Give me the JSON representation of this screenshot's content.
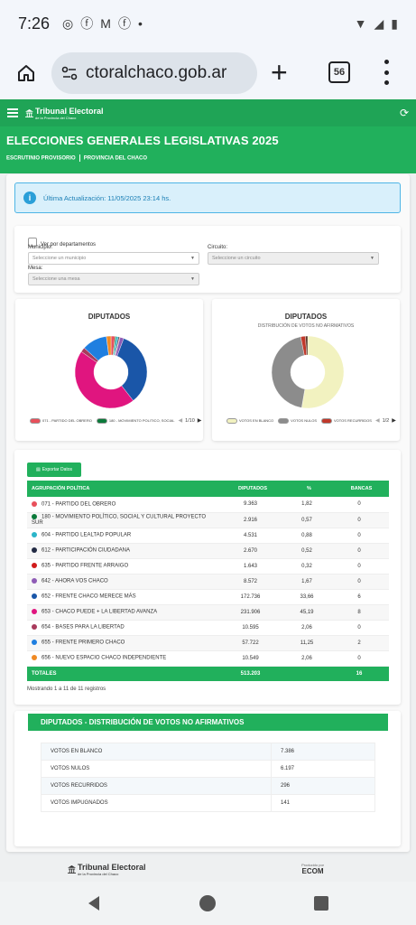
{
  "status": {
    "time": "7:26"
  },
  "browser": {
    "url": "ctoralchaco.gob.ar",
    "tab_count": "56"
  },
  "site": {
    "brand": "Tribunal Electoral",
    "brand_sub": "de la Provincia del Chaco",
    "title": "ELECCIONES GENERALES LEGISLATIVAS 2025",
    "crumb1": "ESCRUTINIO PROVISORIO",
    "crumb2": "PROVINCIA DEL CHACO"
  },
  "alert": {
    "text": "Última Actualización: 11/05/2025 23:14 hs."
  },
  "filters": {
    "by_dept": "Ver por departamentos",
    "municipio_label": "Municipio:",
    "municipio_ph": "Seleccione un municipio",
    "circuito_label": "Circuito:",
    "circuito_ph": "Seleccione un circuito",
    "mesa_label": "Mesa:",
    "mesa_ph": "Seleccione una mesa"
  },
  "chart1": {
    "title": "DIPUTADOS",
    "legend1": "071 - PARTIDO DEL OBRERO",
    "legend2": "180 - MOVIMIENTO POLITICO, SOCIAL",
    "pager": "1/10"
  },
  "chart2": {
    "title": "DIPUTADOS",
    "subtitle": "DISTRIBUCIÓN DE VOTOS NO AFIRMATIVOS",
    "legend1": "VOTOS EN BLANCO",
    "legend2": "VOTOS NULOS",
    "legend3": "VOTOS RECURRIDOS",
    "pager": "1/2"
  },
  "chart_data": [
    {
      "type": "pie",
      "title": "DIPUTADOS",
      "categories": [
        "071 - PARTIDO DEL OBRERO",
        "180 - MOVIMIENTO POLÍTICO, SOCIAL Y CULTURAL PROYECTO SUR",
        "604 - PARTIDO LEALTAD POPULAR",
        "612 - PARTICIPACIÓN CIUDADANA",
        "635 - PARTIDO FRENTE ARRAIGO",
        "642 - AHORA VOS CHACO",
        "652 - FRENTE CHACO MERECE MÁS",
        "653 - CHACO PUEDE + LA LIBERTAD AVANZA",
        "654 - BASES PARA LA LIBERTAD",
        "655 - FRENTE PRIMERO CHACO",
        "656 - NUEVO ESPACIO CHACO INDEPENDIENTE"
      ],
      "values": [
        9363,
        2916,
        4531,
        2670,
        1643,
        8572,
        172736,
        231906,
        10595,
        57722,
        10549
      ],
      "colors": [
        "#e8505b",
        "#0b7a3a",
        "#2bb5c9",
        "#222a44",
        "#d01c1c",
        "#8e5bb5",
        "#1a56a8",
        "#e0157f",
        "#a83a5c",
        "#1f7fe0",
        "#f08a24"
      ]
    },
    {
      "type": "pie",
      "title": "DIPUTADOS",
      "subtitle": "DISTRIBUCIÓN DE VOTOS NO AFIRMATIVOS",
      "categories": [
        "VOTOS EN BLANCO",
        "VOTOS NULOS",
        "VOTOS RECURRIDOS",
        "VOTOS IMPUGNADOS"
      ],
      "values": [
        7386,
        6197,
        296,
        141
      ],
      "colors": [
        "#f2f2c0",
        "#8c8c8c",
        "#c0392b",
        "#5a3a2a"
      ]
    }
  ],
  "export_label": "Exportar Datos",
  "table": {
    "headers": [
      "AGRUPACIÓN POLÍTICA",
      "DIPUTADOS",
      "%",
      "BANCAS"
    ],
    "rows": [
      {
        "name": "071 - PARTIDO DEL OBRERO",
        "votes": "9.363",
        "pct": "1,82",
        "seats": "0",
        "color": "#e8505b"
      },
      {
        "name": "180 - MOVIMIENTO POLÍTICO, SOCIAL Y CULTURAL PROYECTO SUR",
        "votes": "2.916",
        "pct": "0,57",
        "seats": "0",
        "color": "#0b7a3a"
      },
      {
        "name": "604 - PARTIDO LEALTAD POPULAR",
        "votes": "4.531",
        "pct": "0,88",
        "seats": "0",
        "color": "#2bb5c9"
      },
      {
        "name": "612 - PARTICIPACIÓN CIUDADANA",
        "votes": "2.670",
        "pct": "0,52",
        "seats": "0",
        "color": "#222a44"
      },
      {
        "name": "635 - PARTIDO FRENTE ARRAIGO",
        "votes": "1.643",
        "pct": "0,32",
        "seats": "0",
        "color": "#d01c1c"
      },
      {
        "name": "642 - AHORA VOS CHACO",
        "votes": "8.572",
        "pct": "1,67",
        "seats": "0",
        "color": "#8e5bb5"
      },
      {
        "name": "652 - FRENTE CHACO MERECE MÁS",
        "votes": "172.736",
        "pct": "33,66",
        "seats": "6",
        "color": "#1a56a8"
      },
      {
        "name": "653 - CHACO PUEDE + LA LIBERTAD AVANZA",
        "votes": "231.906",
        "pct": "45,19",
        "seats": "8",
        "color": "#e0157f"
      },
      {
        "name": "654 - BASES PARA LA LIBERTAD",
        "votes": "10.595",
        "pct": "2,06",
        "seats": "0",
        "color": "#a83a5c"
      },
      {
        "name": "655 - FRENTE PRIMERO CHACO",
        "votes": "57.722",
        "pct": "11,25",
        "seats": "2",
        "color": "#1f7fe0"
      },
      {
        "name": "656 - NUEVO ESPACIO CHACO INDEPENDIENTE",
        "votes": "10.549",
        "pct": "2,06",
        "seats": "0",
        "color": "#f08a24"
      }
    ],
    "total_label": "TOTALES",
    "total_votes": "513.203",
    "total_seats": "16",
    "footer": "Mostrando 1 a 11 de 11 registros"
  },
  "nonaff": {
    "title": "DIPUTADOS - DISTRIBUCIÓN DE VOTOS NO AFIRMATIVOS",
    "rows": [
      {
        "label": "VOTOS EN BLANCO",
        "value": "7.386"
      },
      {
        "label": "VOTOS NULOS",
        "value": "6.197"
      },
      {
        "label": "VOTOS RECURRIDOS",
        "value": "296"
      },
      {
        "label": "VOTOS IMPUGNADOS",
        "value": "141"
      }
    ]
  },
  "page_footer": {
    "left": "Tribunal Electoral",
    "left_sub": "de la Provincia del Chaco",
    "right_sub": "Producido por",
    "right": "ECOM"
  }
}
